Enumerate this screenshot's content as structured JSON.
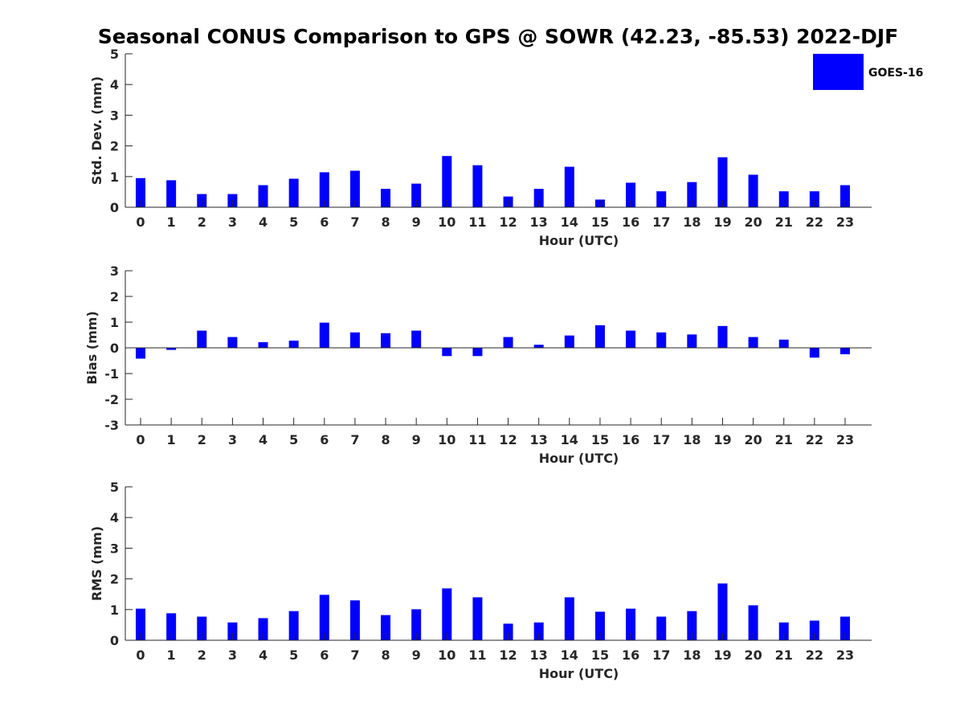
{
  "title": "Seasonal CONUS Comparison to GPS @ SOWR (42.23, -85.53) 2022-DJF",
  "legend": {
    "label": "GOES-16",
    "color": "#0000ff"
  },
  "chart_data": [
    {
      "type": "bar",
      "title": "Seasonal CONUS Comparison to GPS @ SOWR (42.23, -85.53) 2022-DJF",
      "xlabel": "Hour (UTC)",
      "ylabel": "Std. Dev. (mm)",
      "ylim": [
        0,
        5
      ],
      "yticks": [
        0,
        1,
        2,
        3,
        4,
        5
      ],
      "categories": [
        "0",
        "1",
        "2",
        "3",
        "4",
        "5",
        "6",
        "7",
        "8",
        "9",
        "10",
        "11",
        "12",
        "13",
        "14",
        "15",
        "16",
        "17",
        "18",
        "19",
        "20",
        "21",
        "22",
        "23"
      ],
      "series": [
        {
          "name": "GOES-16",
          "color": "#0000ff",
          "values": [
            0.95,
            0.88,
            0.43,
            0.43,
            0.72,
            0.93,
            1.14,
            1.19,
            0.6,
            0.77,
            1.67,
            1.37,
            0.35,
            0.6,
            1.32,
            0.25,
            0.8,
            0.52,
            0.82,
            1.63,
            1.06,
            0.52,
            0.52,
            0.72
          ]
        }
      ]
    },
    {
      "type": "bar",
      "xlabel": "Hour (UTC)",
      "ylabel": "Bias (mm)",
      "ylim": [
        -3,
        3
      ],
      "yticks": [
        -3,
        -2,
        -1,
        0,
        1,
        2,
        3
      ],
      "categories": [
        "0",
        "1",
        "2",
        "3",
        "4",
        "5",
        "6",
        "7",
        "8",
        "9",
        "10",
        "11",
        "12",
        "13",
        "14",
        "15",
        "16",
        "17",
        "18",
        "19",
        "20",
        "21",
        "22",
        "23"
      ],
      "series": [
        {
          "name": "GOES-16",
          "color": "#0000ff",
          "values": [
            -0.42,
            -0.08,
            0.67,
            0.42,
            0.22,
            0.28,
            0.98,
            0.6,
            0.57,
            0.67,
            -0.32,
            -0.32,
            0.42,
            0.12,
            0.48,
            0.88,
            0.67,
            0.6,
            0.52,
            0.85,
            0.42,
            0.32,
            -0.38,
            -0.25
          ]
        }
      ]
    },
    {
      "type": "bar",
      "xlabel": "Hour (UTC)",
      "ylabel": "RMS (mm)",
      "ylim": [
        0,
        5
      ],
      "yticks": [
        0,
        1,
        2,
        3,
        4,
        5
      ],
      "categories": [
        "0",
        "1",
        "2",
        "3",
        "4",
        "5",
        "6",
        "7",
        "8",
        "9",
        "10",
        "11",
        "12",
        "13",
        "14",
        "15",
        "16",
        "17",
        "18",
        "19",
        "20",
        "21",
        "22",
        "23"
      ],
      "series": [
        {
          "name": "GOES-16",
          "color": "#0000ff",
          "values": [
            1.03,
            0.88,
            0.77,
            0.58,
            0.72,
            0.95,
            1.48,
            1.3,
            0.82,
            1.01,
            1.69,
            1.4,
            0.54,
            0.58,
            1.4,
            0.93,
            1.03,
            0.77,
            0.95,
            1.85,
            1.14,
            0.58,
            0.64,
            0.77
          ]
        }
      ]
    }
  ]
}
